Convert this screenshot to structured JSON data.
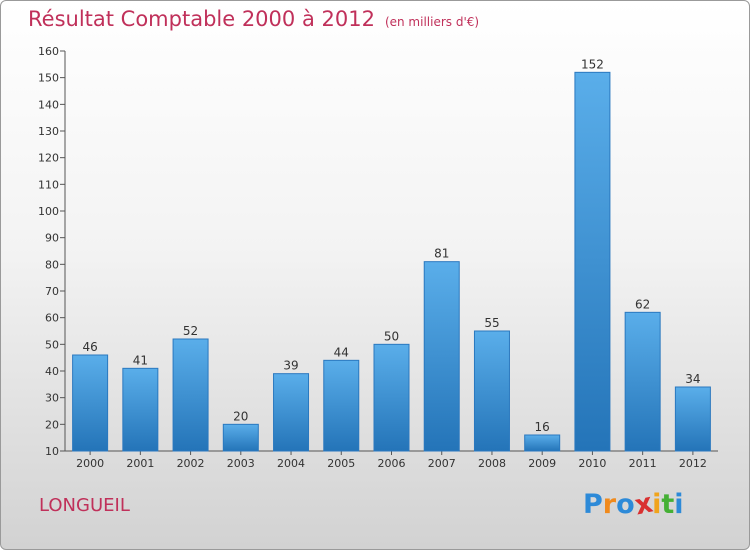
{
  "chart_data": {
    "type": "bar",
    "title": "Résultat Comptable 2000 à 2012",
    "subtitle": "(en milliers d'€)",
    "categories": [
      "2000",
      "2001",
      "2002",
      "2003",
      "2004",
      "2005",
      "2006",
      "2007",
      "2008",
      "2009",
      "2010",
      "2011",
      "2012"
    ],
    "values": [
      46,
      41,
      52,
      20,
      39,
      44,
      50,
      81,
      55,
      16,
      152,
      62,
      34
    ],
    "ylim": [
      10,
      160
    ],
    "yticks": [
      10,
      20,
      30,
      40,
      50,
      60,
      70,
      80,
      90,
      100,
      110,
      120,
      130,
      140,
      150,
      160
    ],
    "grid": false,
    "bar_color": "#3a8fd6"
  },
  "location": "LONGUEIL",
  "brand": {
    "letters": [
      "P",
      "r",
      "o",
      "x",
      "i",
      "t",
      "i"
    ],
    "colors": [
      "#2d8ad8",
      "#f08a1c",
      "#2d8ad8",
      "#d93030",
      "#f0a41c",
      "#45b035",
      "#2d8ad8"
    ]
  }
}
